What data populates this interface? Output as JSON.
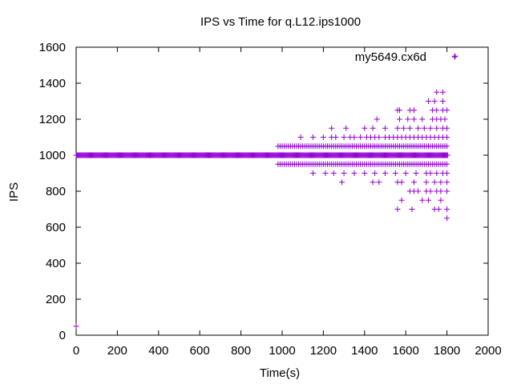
{
  "chart_data": {
    "type": "scatter",
    "title": "IPS vs Time for q.L12.ips1000",
    "xlabel": "Time(s)",
    "ylabel": "IPS",
    "xlim": [
      0,
      2000
    ],
    "ylim": [
      0,
      1600
    ],
    "xticks": [
      0,
      200,
      400,
      600,
      800,
      1000,
      1200,
      1400,
      1600,
      1800,
      2000
    ],
    "yticks": [
      0,
      200,
      400,
      600,
      800,
      1000,
      1200,
      1400,
      1600
    ],
    "grid": false,
    "legend_position": "top-right",
    "marker": "plus",
    "series": [
      {
        "name": "my5649.cx6d",
        "color": "#9400d3",
        "dense_bands": [
          {
            "y": 1000,
            "x_start": 0,
            "x_end": 1805,
            "step": 4
          },
          {
            "y": 1050,
            "x_start": 980,
            "x_end": 1800,
            "step": 10
          },
          {
            "y": 950,
            "x_start": 980,
            "x_end": 1800,
            "step": 10
          }
        ],
        "points": [
          [
            0,
            50
          ],
          [
            1840,
            1550
          ],
          [
            1090,
            1100
          ],
          [
            1150,
            1100
          ],
          [
            1200,
            1100
          ],
          [
            1240,
            1100
          ],
          [
            1260,
            1100
          ],
          [
            1300,
            1100
          ],
          [
            1330,
            1100
          ],
          [
            1350,
            1100
          ],
          [
            1380,
            1100
          ],
          [
            1410,
            1100
          ],
          [
            1430,
            1100
          ],
          [
            1450,
            1100
          ],
          [
            1470,
            1100
          ],
          [
            1500,
            1100
          ],
          [
            1520,
            1100
          ],
          [
            1540,
            1100
          ],
          [
            1560,
            1100
          ],
          [
            1580,
            1100
          ],
          [
            1600,
            1100
          ],
          [
            1620,
            1100
          ],
          [
            1640,
            1100
          ],
          [
            1660,
            1100
          ],
          [
            1680,
            1100
          ],
          [
            1700,
            1100
          ],
          [
            1720,
            1100
          ],
          [
            1740,
            1100
          ],
          [
            1760,
            1100
          ],
          [
            1780,
            1100
          ],
          [
            1800,
            1100
          ],
          [
            1240,
            1150
          ],
          [
            1310,
            1150
          ],
          [
            1400,
            1150
          ],
          [
            1440,
            1150
          ],
          [
            1500,
            1150
          ],
          [
            1560,
            1150
          ],
          [
            1590,
            1150
          ],
          [
            1620,
            1150
          ],
          [
            1660,
            1150
          ],
          [
            1690,
            1150
          ],
          [
            1720,
            1150
          ],
          [
            1750,
            1150
          ],
          [
            1780,
            1150
          ],
          [
            1800,
            1150
          ],
          [
            1460,
            1200
          ],
          [
            1570,
            1200
          ],
          [
            1610,
            1200
          ],
          [
            1640,
            1200
          ],
          [
            1680,
            1200
          ],
          [
            1730,
            1200
          ],
          [
            1750,
            1200
          ],
          [
            1770,
            1200
          ],
          [
            1790,
            1200
          ],
          [
            1560,
            1250
          ],
          [
            1570,
            1250
          ],
          [
            1620,
            1250
          ],
          [
            1640,
            1250
          ],
          [
            1730,
            1250
          ],
          [
            1750,
            1250
          ],
          [
            1780,
            1250
          ],
          [
            1800,
            1250
          ],
          [
            1710,
            1300
          ],
          [
            1740,
            1300
          ],
          [
            1780,
            1300
          ],
          [
            1750,
            1350
          ],
          [
            1780,
            1350
          ],
          [
            1150,
            900
          ],
          [
            1210,
            900
          ],
          [
            1250,
            900
          ],
          [
            1300,
            900
          ],
          [
            1350,
            900
          ],
          [
            1400,
            900
          ],
          [
            1450,
            900
          ],
          [
            1500,
            900
          ],
          [
            1550,
            900
          ],
          [
            1600,
            900
          ],
          [
            1650,
            900
          ],
          [
            1700,
            900
          ],
          [
            1720,
            900
          ],
          [
            1750,
            900
          ],
          [
            1780,
            900
          ],
          [
            1800,
            900
          ],
          [
            1290,
            850
          ],
          [
            1440,
            850
          ],
          [
            1470,
            850
          ],
          [
            1560,
            850
          ],
          [
            1580,
            850
          ],
          [
            1640,
            850
          ],
          [
            1700,
            850
          ],
          [
            1740,
            850
          ],
          [
            1770,
            850
          ],
          [
            1800,
            850
          ],
          [
            1620,
            800
          ],
          [
            1640,
            800
          ],
          [
            1660,
            800
          ],
          [
            1700,
            800
          ],
          [
            1720,
            800
          ],
          [
            1750,
            800
          ],
          [
            1770,
            800
          ],
          [
            1800,
            800
          ],
          [
            1580,
            750
          ],
          [
            1680,
            750
          ],
          [
            1710,
            750
          ],
          [
            1770,
            750
          ],
          [
            1560,
            700
          ],
          [
            1630,
            700
          ],
          [
            1740,
            700
          ],
          [
            1760,
            700
          ],
          [
            1800,
            700
          ],
          [
            1800,
            650
          ]
        ]
      }
    ]
  }
}
